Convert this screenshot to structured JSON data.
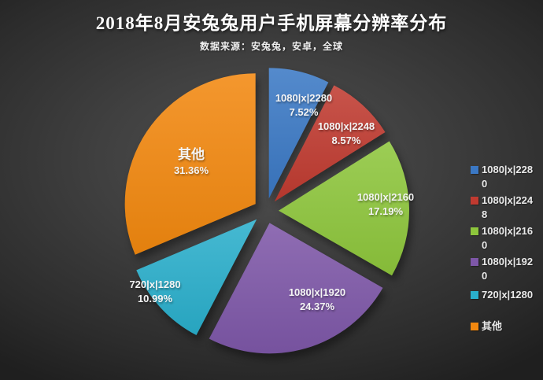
{
  "header": {
    "title": "2018年8月安兔兔用户手机屏幕分辨率分布",
    "subtitle": "数据来源：安兔兔，安卓，全球"
  },
  "chart_data": {
    "type": "pie",
    "title": "2018年8月安兔兔用户手机屏幕分辨率分布",
    "source_note": "数据来源：安兔兔，安卓，全球",
    "unit": "%",
    "start_angle_deg": 0,
    "direction": "clockwise",
    "exploded": true,
    "legend_position": "right",
    "background": "dark-gray-gradient",
    "categories": [
      "1080|x|2280",
      "1080|x|2248",
      "1080|x|2160",
      "1080|x|1920",
      "720|x|1280",
      "其他"
    ],
    "values": [
      7.52,
      8.57,
      17.19,
      24.37,
      10.99,
      31.36
    ],
    "series": [
      {
        "name": "1080|x|2280",
        "value": 7.52,
        "display": "7.52%",
        "color": "#3B78C4"
      },
      {
        "name": "1080|x|2248",
        "value": 8.57,
        "display": "8.57%",
        "color": "#C03A30"
      },
      {
        "name": "1080|x|2160",
        "value": 17.19,
        "display": "17.19%",
        "color": "#8DC63C"
      },
      {
        "name": "1080|x|1920",
        "value": 24.37,
        "display": "24.37%",
        "color": "#7E57A8"
      },
      {
        "name": "720|x|1280",
        "value": 10.99,
        "display": "10.99%",
        "color": "#2AAECB"
      },
      {
        "name": "其他",
        "value": 31.36,
        "display": "31.36%",
        "color": "#F2880F"
      }
    ]
  }
}
